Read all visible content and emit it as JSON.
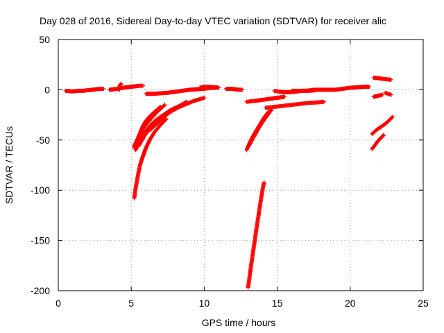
{
  "chart_data": {
    "type": "scatter",
    "title": "Day 028 of 2016, Sidereal Day-to-day VTEC variation (SDTVAR) for receiver alic",
    "xlabel": "GPS time / hours",
    "ylabel": "SDTVAR / TECUs",
    "xlim": [
      0,
      25
    ],
    "ylim": [
      -200,
      50
    ],
    "x_ticks": [
      0,
      5,
      10,
      15,
      20,
      25
    ],
    "x_tick_labels": [
      "0",
      "5",
      "10",
      "15",
      "20",
      "25"
    ],
    "y_ticks": [
      -200,
      -150,
      -100,
      -50,
      0,
      50
    ],
    "y_tick_labels": [
      "-200",
      "-150",
      "-100",
      "-50",
      "0",
      "50"
    ],
    "grid": true,
    "legend": "none",
    "marker": "plus",
    "color": "#ff0000",
    "series": [
      {
        "x": [
          0.5,
          0.8,
          1.1,
          1.4,
          1.7,
          2.0,
          2.3,
          2.6,
          2.9,
          3.1
        ],
        "y": [
          -1,
          -1.5,
          -1.5,
          -1,
          -1,
          -0.5,
          0,
          0.5,
          1,
          1
        ]
      },
      {
        "x": [
          3.5,
          3.8,
          4.1,
          4.4,
          4.7,
          5.0,
          5.3,
          5.6,
          5.8
        ],
        "y": [
          0,
          0.5,
          1,
          2,
          2.5,
          3,
          3.5,
          4,
          4
        ]
      },
      {
        "x": [
          4.2,
          4.2,
          4.3
        ],
        "y": [
          0,
          4,
          6
        ]
      },
      {
        "x": [
          6.0,
          6.5,
          7.0,
          7.5,
          8.0,
          8.5,
          9.0,
          9.5,
          10.0,
          10.5,
          10.8
        ],
        "y": [
          -4,
          -4,
          -3.5,
          -3,
          -2,
          -1,
          0,
          0.5,
          1,
          2,
          2
        ]
      },
      {
        "x": [
          9.7,
          10.0,
          10.4,
          10.8,
          11.0
        ],
        "y": [
          2,
          3,
          3,
          2.5,
          2
        ]
      },
      {
        "x": [
          11.5,
          11.8,
          12.1,
          12.4,
          12.6
        ],
        "y": [
          1,
          1,
          0.5,
          0,
          0
        ]
      },
      {
        "x": [
          12.9,
          13.5,
          14.0,
          14.5,
          15.0,
          15.5
        ],
        "y": [
          -12,
          -11,
          -10,
          -9,
          -8,
          -7
        ]
      },
      {
        "x": [
          14.8,
          15.2,
          15.7,
          16.2,
          16.7,
          17.2,
          17.6
        ],
        "y": [
          -1,
          -2,
          -2.5,
          -2,
          -1,
          -1,
          -0.5
        ]
      },
      {
        "x": [
          16.0,
          16.5,
          17.0,
          17.5,
          18.0,
          18.5,
          19.0,
          19.5,
          20.0,
          20.5,
          21.0,
          21.3
        ],
        "y": [
          -1,
          -1,
          -1,
          0,
          0,
          0,
          0,
          1,
          2,
          2.5,
          3,
          3
        ]
      },
      {
        "x": [
          14.2,
          14.8,
          15.4,
          16.0,
          16.6,
          17.2,
          17.8,
          18.2
        ],
        "y": [
          -18,
          -17,
          -16,
          -15,
          -14,
          -13,
          -12.5,
          -12
        ]
      },
      {
        "x": [
          21.6,
          21.9,
          22.2,
          22.5,
          22.8
        ],
        "y": [
          12,
          11.5,
          11,
          10.5,
          10
        ]
      },
      {
        "x": [
          21.6,
          21.9,
          22.2
        ],
        "y": [
          -7,
          -6,
          -5
        ]
      },
      {
        "x": [
          22.4,
          22.6,
          22.8
        ],
        "y": [
          -3,
          -4,
          -5
        ]
      },
      {
        "x": [
          21.5,
          21.8,
          22.1,
          22.4,
          22.7,
          22.9
        ],
        "y": [
          -44,
          -40,
          -37,
          -34,
          -30,
          -27
        ]
      },
      {
        "x": [
          21.5,
          21.7,
          21.9,
          22.1,
          22.3
        ],
        "y": [
          -59,
          -55,
          -51,
          -48,
          -45
        ]
      },
      {
        "x": [
          5.2,
          5.4,
          5.6,
          5.8,
          6.0,
          6.3,
          6.6,
          7.0
        ],
        "y": [
          -58,
          -50,
          -43,
          -36,
          -31,
          -26,
          -22,
          -17
        ]
      },
      {
        "x": [
          5.2,
          5.5,
          5.8,
          6.1,
          6.4,
          6.7,
          7.0,
          7.3
        ],
        "y": [
          -56,
          -47,
          -39,
          -33,
          -28,
          -23,
          -19,
          -15
        ]
      },
      {
        "x": [
          5.3,
          5.6,
          6.0,
          6.4,
          6.8,
          7.2,
          7.6,
          8.0
        ],
        "y": [
          -60,
          -50,
          -41,
          -34,
          -29,
          -25,
          -21,
          -18
        ]
      },
      {
        "x": [
          5.5,
          5.9,
          6.3,
          6.8,
          7.3,
          7.8,
          8.3,
          8.8
        ],
        "y": [
          -56,
          -46,
          -38,
          -31,
          -25,
          -20,
          -16,
          -12
        ]
      },
      {
        "x": [
          6.3,
          6.8,
          7.3,
          7.8,
          8.3,
          8.8,
          9.3,
          9.8,
          10.0
        ],
        "y": [
          -40,
          -33,
          -26,
          -21,
          -17,
          -14,
          -11,
          -9,
          -8
        ]
      },
      {
        "x": [
          5.2,
          5.3,
          5.4,
          5.5,
          5.6,
          5.8,
          6.0,
          6.3,
          6.6,
          7.0,
          7.4
        ],
        "y": [
          -108,
          -98,
          -90,
          -82,
          -75,
          -66,
          -58,
          -49,
          -42,
          -35,
          -29
        ]
      },
      {
        "x": [
          12.9,
          13.2,
          13.5,
          13.8,
          14.1,
          14.4
        ],
        "y": [
          -60,
          -50,
          -42,
          -35,
          -28,
          -22
        ]
      },
      {
        "x": [
          13.1,
          13.4,
          13.7,
          14.0,
          14.3
        ],
        "y": [
          -55,
          -46,
          -38,
          -30,
          -24
        ]
      },
      {
        "x": [
          13.4,
          13.7,
          14.0,
          14.3,
          14.6
        ],
        "y": [
          -47,
          -39,
          -32,
          -26,
          -20
        ]
      },
      {
        "x": [
          13.0,
          13.1,
          13.2,
          13.3,
          13.4,
          13.5,
          13.6,
          13.7,
          13.8,
          13.9,
          14.0,
          14.1
        ],
        "y": [
          -197,
          -187,
          -176,
          -166,
          -156,
          -146,
          -136,
          -127,
          -117,
          -108,
          -99,
          -92
        ]
      }
    ]
  }
}
